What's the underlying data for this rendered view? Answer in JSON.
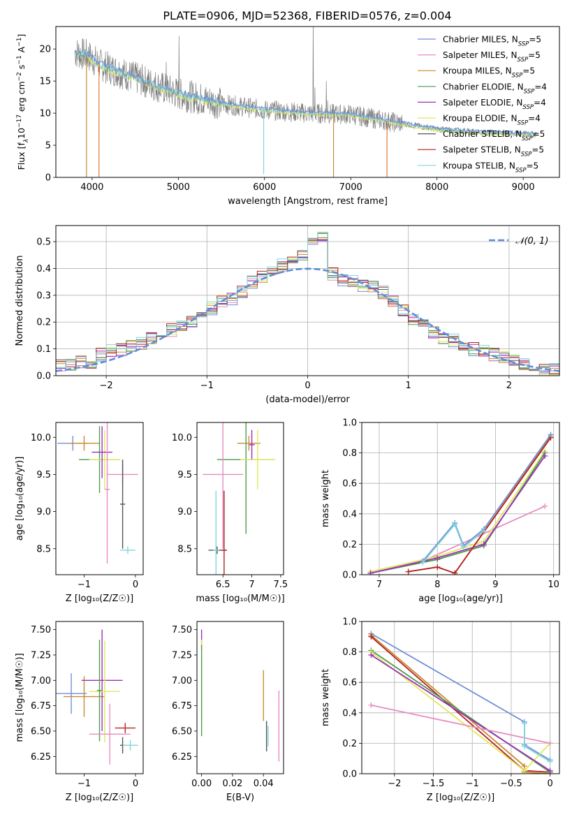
{
  "title": "PLATE=0906, MJD=52368, FIBERID=0576, z=0.004",
  "colors": {
    "Chabrier MILES": "#6f8fd8",
    "Salpeter MILES": "#e88cc2",
    "Kroupa MILES": "#c98a2e",
    "Chabrier ELODIE": "#4f9a4f",
    "Salpeter ELODIE": "#9b30b8",
    "Kroupa ELODIE": "#e0e85a",
    "Chabrier STELIB": "#555555",
    "Salpeter STELIB": "#b22222",
    "Kroupa STELIB": "#7fd6dc",
    "data": "#808080",
    "orange": "#e07a2e",
    "normal": "#5b8dd9"
  },
  "chart_data": [
    {
      "id": "spectrum",
      "type": "line",
      "xlabel": "wavelength [Angstrom, rest frame]",
      "ylabel_parts": [
        "Flux [f",
        "λ",
        "10",
        "−17",
        " erg cm",
        "−2",
        " s",
        "−1",
        " A",
        "−1",
        "]"
      ],
      "xlim": [
        3580,
        9420
      ],
      "ylim": [
        0,
        23.5
      ],
      "xticks": [
        4000,
        5000,
        6000,
        7000,
        8000,
        9000
      ],
      "yticks": [
        0,
        5,
        10,
        15,
        20
      ],
      "legend_position": "upper right",
      "legend": [
        {
          "label": "Chabrier MILES, N",
          "sub": "SSP",
          "val": "=5"
        },
        {
          "label": "Salpeter MILES, N",
          "sub": "SSP",
          "val": "=5"
        },
        {
          "label": "Kroupa MILES, N",
          "sub": "SSP",
          "val": "=5"
        },
        {
          "label": "Chabrier ELODIE, N",
          "sub": "SSP",
          "val": "=4"
        },
        {
          "label": "Salpeter ELODIE, N",
          "sub": "SSP",
          "val": "=4"
        },
        {
          "label": "Kroupa ELODIE, N",
          "sub": "SSP",
          "val": "=4"
        },
        {
          "label": "Chabrier STELIB, N",
          "sub": "SSP",
          "val": "=5"
        },
        {
          "label": "Salpeter STELIB, N",
          "sub": "SSP",
          "val": "=5"
        },
        {
          "label": "Kroupa STELIB, N",
          "sub": "SSP",
          "val": "=5"
        }
      ],
      "continuum": [
        [
          3800,
          19.5
        ],
        [
          3950,
          19
        ],
        [
          4100,
          17.5
        ],
        [
          4300,
          16.5
        ],
        [
          4500,
          15.5
        ],
        [
          4800,
          14
        ],
        [
          5000,
          13
        ],
        [
          5500,
          11.5
        ],
        [
          6000,
          10.5
        ],
        [
          6500,
          10
        ],
        [
          7000,
          9.8
        ],
        [
          7500,
          8.6
        ],
        [
          8000,
          7.5
        ],
        [
          8500,
          7
        ],
        [
          9000,
          6.8
        ],
        [
          9150,
          6.7
        ]
      ],
      "emission_lines": [
        [
          4861,
          18
        ],
        [
          5007,
          22
        ],
        [
          6563,
          25
        ],
        [
          6583,
          14
        ],
        [
          6717,
          15
        ],
        [
          6731,
          12
        ]
      ],
      "drops": [
        [
          3935,
          0,
          "Kroupa MILES"
        ],
        [
          4080,
          0,
          "orange"
        ],
        [
          5990,
          0.5,
          "Kroupa STELIB"
        ],
        [
          6800,
          0,
          "Kroupa MILES"
        ],
        [
          7420,
          0,
          "orange"
        ]
      ]
    },
    {
      "id": "residuals",
      "type": "histogram",
      "xlabel": "(data-model)/error",
      "ylabel": "Normed distribution",
      "xlim": [
        -2.5,
        2.5
      ],
      "ylim": [
        0,
        0.56
      ],
      "xticks": [
        -2,
        -1,
        0,
        1,
        2
      ],
      "yticks": [
        0.0,
        0.1,
        0.2,
        0.3,
        0.4,
        0.5
      ],
      "grid": true,
      "legend": "𝒩(0, 1)",
      "legend_position": "upper right",
      "bin_width": 0.1,
      "bin_start": -2.5,
      "base_values": [
        0.04,
        0.04,
        0.05,
        0.04,
        0.08,
        0.09,
        0.1,
        0.11,
        0.12,
        0.14,
        0.16,
        0.17,
        0.18,
        0.2,
        0.22,
        0.25,
        0.28,
        0.29,
        0.31,
        0.35,
        0.37,
        0.4,
        0.41,
        0.43,
        0.45,
        0.49,
        0.52,
        0.38,
        0.36,
        0.35,
        0.34,
        0.33,
        0.31,
        0.28,
        0.24,
        0.21,
        0.19,
        0.16,
        0.14,
        0.13,
        0.11,
        0.1,
        0.09,
        0.08,
        0.07,
        0.06,
        0.04,
        0.03,
        0.02,
        0.02
      ]
    },
    {
      "id": "age_vs_Z",
      "type": "errorbar",
      "xlabel": "Z [log₁₀(Z/Z☉)]",
      "ylabel": "age  [log₁₀(age/yr)]",
      "xlim": [
        -1.55,
        0.15
      ],
      "ylim": [
        8.15,
        10.2
      ],
      "xticks": [
        -1,
        0
      ],
      "yticks": [
        8.5,
        9.0,
        9.5,
        10.0
      ],
      "points": [
        {
          "series": "Chabrier MILES",
          "x": -1.22,
          "y": 9.92,
          "xerr": 0.3,
          "yerr": 0.1
        },
        {
          "series": "Kroupa MILES",
          "x": -1.0,
          "y": 9.92,
          "xerr": 0.3,
          "yerr": 0.1
        },
        {
          "series": "Salpeter MILES",
          "x": -0.25,
          "y": 9.5,
          "xerr": 0.3,
          "yerr": 0.15
        },
        {
          "series": "Chabrier ELODIE",
          "x": -0.7,
          "y": 9.7,
          "xerr": 0.4,
          "yerr": 0.45
        },
        {
          "series": "Kroupa ELODIE",
          "x": -0.6,
          "y": 9.7,
          "xerr": 0.3,
          "yerr": 0.4
        },
        {
          "series": "Salpeter ELODIE",
          "x": -0.65,
          "y": 9.8,
          "xerr": 0.2,
          "yerr": 0.35
        },
        {
          "series": "Chabrier STELIB",
          "x": -0.25,
          "y": 9.1,
          "xerr": 0.05,
          "yerr": 0.6
        },
        {
          "series": "Kroupa STELIB",
          "x": -0.15,
          "y": 8.48,
          "xerr": 0.15,
          "yerr": 0.05
        },
        {
          "series": "Salpeter MILES",
          "x": -0.55,
          "y": 9.3,
          "xerr": 0.05,
          "yerr": 1.0
        }
      ]
    },
    {
      "id": "age_vs_mass",
      "type": "errorbar",
      "xlabel": "mass [log₁₀(M/M☉)]",
      "ylabel": "",
      "xlim": [
        6.05,
        7.55
      ],
      "ylim": [
        8.15,
        10.2
      ],
      "xticks": [
        6.5,
        7.0,
        7.5
      ],
      "yticks": [
        8.5,
        9.0,
        9.5,
        10.0
      ],
      "points": [
        {
          "series": "Kroupa MILES",
          "x": 6.95,
          "y": 9.92,
          "xerr": 0.2,
          "yerr": 0.1
        },
        {
          "series": "Salpeter ELODIE",
          "x": 7.0,
          "y": 9.9,
          "xerr": 0.05,
          "yerr": 0.2
        },
        {
          "series": "Chabrier ELODIE",
          "x": 6.9,
          "y": 9.7,
          "xerr": 0.5,
          "yerr": 1.0
        },
        {
          "series": "Kroupa ELODIE",
          "x": 7.1,
          "y": 9.7,
          "xerr": 0.3,
          "yerr": 0.4
        },
        {
          "series": "Salpeter MILES",
          "x": 6.5,
          "y": 9.5,
          "xerr": 0.35,
          "yerr": 1.0
        },
        {
          "series": "Chabrier STELIB",
          "x": 6.4,
          "y": 8.48,
          "xerr": 0.15,
          "yerr": 0.05
        },
        {
          "series": "Kroupa STELIB",
          "x": 6.38,
          "y": 8.48,
          "xerr": 0.05,
          "yerr": 0.8
        },
        {
          "series": "Salpeter STELIB",
          "x": 6.52,
          "y": 8.48,
          "xerr": 0.05,
          "yerr": 0.8
        }
      ]
    },
    {
      "id": "weight_vs_age",
      "type": "line",
      "xlabel": "age  [log₁₀(age/yr)]",
      "ylabel": "mass weight",
      "xlim": [
        6.7,
        10.1
      ],
      "ylim": [
        0,
        1.0
      ],
      "xticks": [
        7,
        8,
        9,
        10
      ],
      "yticks": [
        0.0,
        0.2,
        0.4,
        0.6,
        0.8,
        1.0
      ],
      "grid": true,
      "series": [
        {
          "name": "Salpeter MILES",
          "x": [
            6.85,
            7.75,
            9.85
          ],
          "y": [
            0.01,
            0.09,
            0.45
          ]
        },
        {
          "name": "Kroupa ELODIE",
          "x": [
            6.85,
            8.0,
            8.8,
            9.85
          ],
          "y": [
            0.02,
            0.12,
            0.22,
            0.81
          ]
        },
        {
          "name": "Chabrier ELODIE",
          "x": [
            6.85,
            8.0,
            8.8,
            9.85
          ],
          "y": [
            0.01,
            0.1,
            0.19,
            0.8
          ]
        },
        {
          "name": "Salpeter ELODIE",
          "x": [
            6.85,
            8.0,
            8.8,
            9.85
          ],
          "y": [
            0.01,
            0.11,
            0.2,
            0.78
          ]
        },
        {
          "name": "Kroupa MILES",
          "x": [
            7.5,
            8.0,
            8.3,
            9.95
          ],
          "y": [
            0.02,
            0.05,
            0.01,
            0.91
          ]
        },
        {
          "name": "Salpeter STELIB",
          "x": [
            7.5,
            8.0,
            8.3,
            9.95
          ],
          "y": [
            0.02,
            0.05,
            0.01,
            0.9
          ]
        },
        {
          "name": "Chabrier MILES",
          "x": [
            7.75,
            8.3,
            8.45,
            8.8,
            9.95
          ],
          "y": [
            0.09,
            0.34,
            0.19,
            0.3,
            0.92
          ]
        },
        {
          "name": "Kroupa STELIB",
          "x": [
            7.75,
            8.3,
            8.45,
            8.8
          ],
          "y": [
            0.08,
            0.33,
            0.18,
            0.29
          ]
        }
      ]
    },
    {
      "id": "mass_vs_Z",
      "type": "errorbar",
      "xlabel": "Z [log₁₀(Z/Z☉)]",
      "ylabel": "mass [log₁₀(M/M☉)]",
      "xlim": [
        -1.55,
        0.15
      ],
      "ylim": [
        6.08,
        7.58
      ],
      "xticks": [
        -1,
        0
      ],
      "yticks": [
        6.25,
        6.5,
        6.75,
        7.0,
        7.25,
        7.5
      ],
      "points": [
        {
          "series": "Chabrier MILES",
          "x": -1.25,
          "y": 6.87,
          "xerr": 0.3,
          "yerr": 0.2
        },
        {
          "series": "Kroupa MILES",
          "x": -1.0,
          "y": 6.84,
          "xerr": 0.4,
          "yerr": 0.2
        },
        {
          "series": "Salpeter ELODIE",
          "x": -0.65,
          "y": 7.0,
          "xerr": 0.4,
          "yerr": 0.5
        },
        {
          "series": "Kroupa ELODIE",
          "x": -0.6,
          "y": 6.89,
          "xerr": 0.3,
          "yerr": 0.5
        },
        {
          "series": "Chabrier ELODIE",
          "x": -0.7,
          "y": 6.9,
          "xerr": 0.05,
          "yerr": 0.5
        },
        {
          "series": "Salpeter MILES",
          "x": -0.5,
          "y": 6.47,
          "xerr": 0.4,
          "yerr": 0.3
        },
        {
          "series": "Salpeter STELIB",
          "x": -0.2,
          "y": 6.53,
          "xerr": 0.2,
          "yerr": 0.05
        },
        {
          "series": "Chabrier STELIB",
          "x": -0.25,
          "y": 6.36,
          "xerr": 0.05,
          "yerr": 0.08
        },
        {
          "series": "Kroupa STELIB",
          "x": -0.1,
          "y": 6.36,
          "xerr": 0.15,
          "yerr": 0.05
        }
      ]
    },
    {
      "id": "mass_vs_EBV",
      "type": "errorbar",
      "xlabel": "E(B-V)",
      "ylabel": "",
      "xlim": [
        -0.003,
        0.053
      ],
      "ylim": [
        6.08,
        7.58
      ],
      "xticks": [
        0.0,
        0.02,
        0.04
      ],
      "xticklabels": [
        "0.00",
        "0.02",
        "0.04"
      ],
      "yticks": [
        6.25,
        6.5,
        6.75,
        7.0,
        7.25,
        7.5
      ],
      "points": [
        {
          "series": "Salpeter ELODIE",
          "x": 0.0,
          "y": 7.4,
          "xerr": 0,
          "yerr": 0.1
        },
        {
          "series": "Kroupa ELODIE",
          "x": 0.0,
          "y": 7.0,
          "xerr": 0,
          "yerr": 0.4
        },
        {
          "series": "Chabrier ELODIE",
          "x": 0.0,
          "y": 6.9,
          "xerr": 0,
          "yerr": 0.45
        },
        {
          "series": "Kroupa MILES",
          "x": 0.04,
          "y": 6.85,
          "xerr": 0,
          "yerr": 0.25
        },
        {
          "series": "Chabrier STELIB",
          "x": 0.042,
          "y": 6.45,
          "xerr": 0,
          "yerr": 0.15
        },
        {
          "series": "Kroupa STELIB",
          "x": 0.043,
          "y": 6.45,
          "xerr": 0,
          "yerr": 0.1
        },
        {
          "series": "Salpeter MILES",
          "x": 0.05,
          "y": 6.55,
          "xerr": 0,
          "yerr": 0.35
        }
      ]
    },
    {
      "id": "weight_vs_Z",
      "type": "line",
      "xlabel": "Z [log₁₀(Z/Z☉)]",
      "ylabel": "mass weight",
      "xlim": [
        -2.42,
        0.12
      ],
      "ylim": [
        0,
        1.0
      ],
      "xticks": [
        -2.0,
        -1.5,
        -1.0,
        -0.5,
        0.0
      ],
      "yticks": [
        0.0,
        0.2,
        0.4,
        0.6,
        0.8,
        1.0
      ],
      "grid": true,
      "series": [
        {
          "name": "Chabrier MILES",
          "x": [
            -2.3,
            -0.33,
            -0.33,
            0.0
          ],
          "y": [
            0.92,
            0.34,
            0.19,
            0.09
          ]
        },
        {
          "name": "Kroupa MILES",
          "x": [
            -2.3,
            -0.33,
            -0.33,
            0.0
          ],
          "y": [
            0.91,
            0.05,
            0.01,
            0.0
          ]
        },
        {
          "name": "Salpeter STELIB",
          "x": [
            -2.3,
            -0.33,
            0.0
          ],
          "y": [
            0.9,
            0.02,
            0.01
          ]
        },
        {
          "name": "Chabrier ELODIE",
          "x": [
            -2.3,
            0.0
          ],
          "y": [
            0.81,
            0.01
          ]
        },
        {
          "name": "Kroupa ELODIE",
          "x": [
            -2.3,
            -0.33,
            0.0
          ],
          "y": [
            0.8,
            0.02,
            0.2
          ]
        },
        {
          "name": "Salpeter ELODIE",
          "x": [
            -2.3,
            0.0
          ],
          "y": [
            0.78,
            0.02
          ]
        },
        {
          "name": "Salpeter MILES",
          "x": [
            -2.3,
            0.0
          ],
          "y": [
            0.45,
            0.2
          ]
        },
        {
          "name": "Kroupa STELIB",
          "x": [
            -0.33,
            -0.33,
            0.0
          ],
          "y": [
            0.33,
            0.18,
            0.08
          ]
        }
      ]
    }
  ]
}
